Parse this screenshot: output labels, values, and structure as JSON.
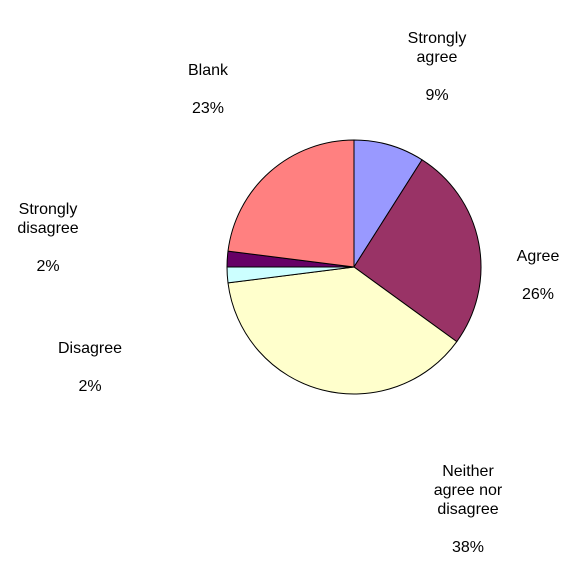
{
  "chart_data": {
    "type": "pie",
    "start_angle": "12 o'clock",
    "direction": "clockwise",
    "border_color": "#000000",
    "slices": [
      {
        "label": "Strongly\nagree",
        "value": 9,
        "pct_text": "9%",
        "color": "#9999FF"
      },
      {
        "label": "Agree",
        "value": 26,
        "pct_text": "26%",
        "color": "#993366"
      },
      {
        "label": "Neither\nagree nor\ndisagree",
        "value": 38,
        "pct_text": "38%",
        "color": "#FFFFCC"
      },
      {
        "label": "Disagree",
        "value": 2,
        "pct_text": "2%",
        "color": "#CCFFFF"
      },
      {
        "label": "Strongly\ndisagree",
        "value": 2,
        "pct_text": "2%",
        "color": "#660066"
      },
      {
        "label": "Blank",
        "value": 23,
        "pct_text": "23%",
        "color": "#FF8080"
      }
    ]
  }
}
